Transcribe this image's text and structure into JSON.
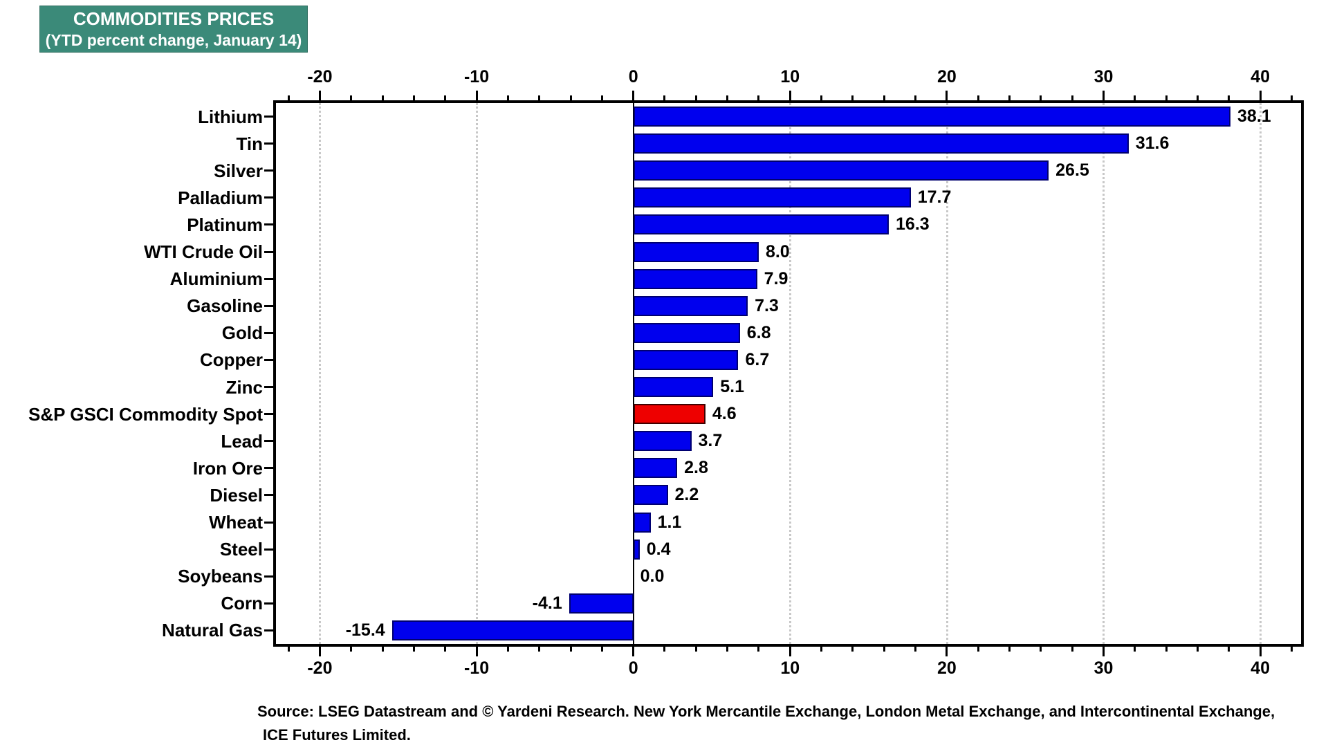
{
  "title": {
    "line1": "COMMODITIES PRICES",
    "line2": "(YTD percent change, January 14)"
  },
  "source": {
    "line1": "Source: LSEG Datastream and © Yardeni Research. New York Mercantile Exchange, London Metal Exchange, and Intercontinental Exchange,",
    "line2": "ICE Futures Limited."
  },
  "colors": {
    "title_bg": "#3b8a79",
    "bar_blue": "#0000ee",
    "bar_blue_border": "#000070",
    "bar_red": "#ee0000",
    "bar_red_border": "#400000",
    "grid": "#c8c8c8",
    "axis": "#000000"
  },
  "chart_data": {
    "type": "bar",
    "orientation": "horizontal",
    "title": "COMMODITIES PRICES (YTD percent change, January 14)",
    "xlabel": "YTD percent change",
    "ylabel": "",
    "categories": [
      "Lithium",
      "Tin",
      "Silver",
      "Palladium",
      "Platinum",
      "WTI Crude Oil",
      "Aluminium",
      "Gasoline",
      "Gold",
      "Copper",
      "Zinc",
      "S&P GSCI Commodity Spot",
      "Lead",
      "Iron Ore",
      "Diesel",
      "Wheat",
      "Steel",
      "Soybeans",
      "Corn",
      "Natural Gas"
    ],
    "values": [
      38.1,
      31.6,
      26.5,
      17.7,
      16.3,
      8.0,
      7.9,
      7.3,
      6.8,
      6.7,
      5.1,
      4.6,
      3.7,
      2.8,
      2.2,
      1.1,
      0.4,
      0.0,
      -4.1,
      -15.4
    ],
    "value_labels": [
      "38.1",
      "31.6",
      "26.5",
      "17.7",
      "16.3",
      "8.0",
      "7.9",
      "7.3",
      "6.8",
      "6.7",
      "5.1",
      "4.6",
      "3.7",
      "2.8",
      "2.2",
      "1.1",
      "0.4",
      "0.0",
      "-4.1",
      "-15.4"
    ],
    "highlight_category": "S&P GSCI Commodity Spot",
    "highlight_index": 11,
    "xlim": [
      -22.8,
      42.6
    ],
    "x_major_ticks": [
      -20,
      -10,
      0,
      10,
      20,
      30,
      40
    ],
    "x_major_tick_labels": [
      "-20",
      "-10",
      "0",
      "10",
      "20",
      "30",
      "40"
    ],
    "x_minor_tick_step": 2,
    "grid": "vertical dotted gridlines at major ticks, solid line at 0",
    "legend": "none"
  }
}
